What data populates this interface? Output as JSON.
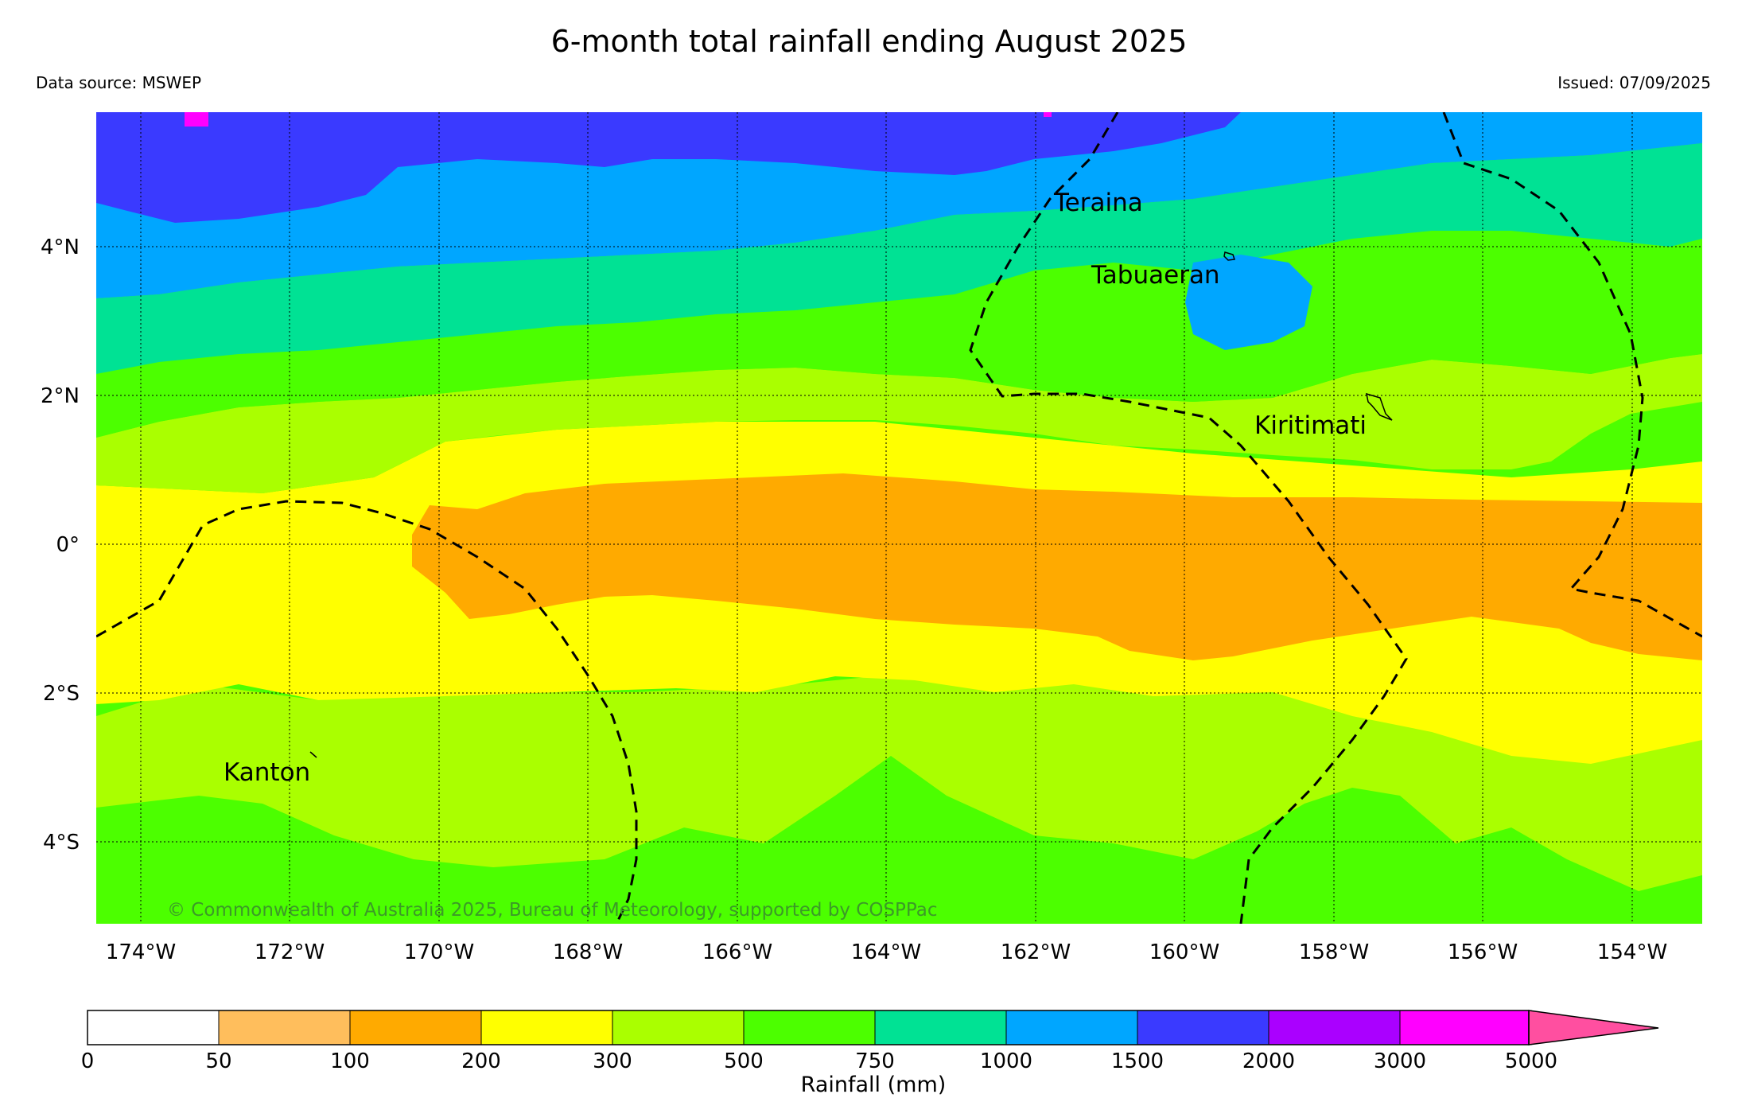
{
  "header": {
    "title": "6-month total rainfall ending August 2025",
    "source": "Data source: MSWEP",
    "issued": "Issued: 07/09/2025"
  },
  "map": {
    "lon_labels": [
      "174°W",
      "172°W",
      "170°W",
      "168°W",
      "166°W",
      "164°W",
      "162°W",
      "160°W",
      "158°W",
      "156°W",
      "154°W"
    ],
    "lat_labels": [
      "4°N",
      "2°N",
      "0°",
      "2°S",
      "4°S"
    ],
    "places": {
      "teraina": "Teraina",
      "tabuaeran": "Tabuaeran",
      "kiritimati": "Kiritimati",
      "kanton": "Kanton"
    },
    "copyright": "© Commonwealth of Australia 2025, Bureau of Meteorology, supported by COSPPac",
    "band_colors": {
      "1500-2000": "#3a3aff",
      "1000-1500": "#00a6ff",
      "750-1000": "#00e294",
      "500-750": "#4cff00",
      "300-500": "#aaff00",
      "200-300": "#ffff00",
      "100-200": "#ffaa00"
    }
  },
  "colorbar": {
    "label": "Rainfall (mm)",
    "ticks": [
      "0",
      "50",
      "100",
      "200",
      "300",
      "500",
      "750",
      "1000",
      "1500",
      "2000",
      "3000",
      "5000"
    ],
    "colors": [
      "#ffffff",
      "#ffbe5c",
      "#ffaa00",
      "#ffff00",
      "#aaff00",
      "#4cff00",
      "#00e294",
      "#00a6ff",
      "#3a3aff",
      "#aa00ff",
      "#ff00ff"
    ],
    "extend_color": "#ff4fa0"
  }
}
